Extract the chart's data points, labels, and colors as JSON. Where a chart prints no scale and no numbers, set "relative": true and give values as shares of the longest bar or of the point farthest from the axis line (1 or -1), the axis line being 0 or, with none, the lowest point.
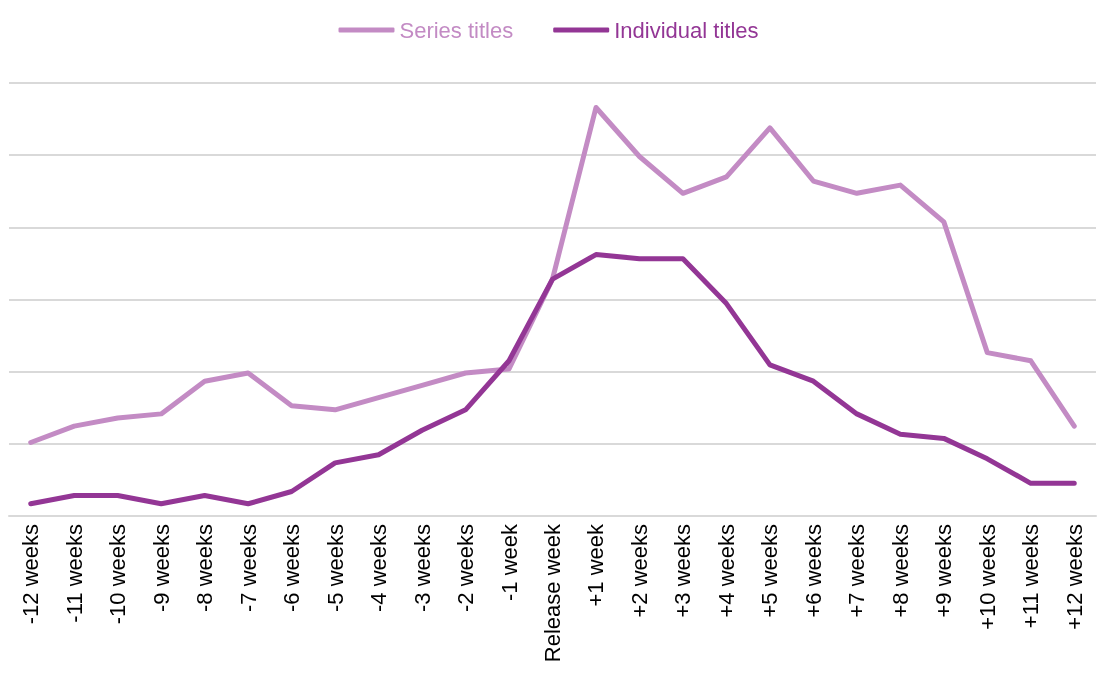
{
  "chart_data": {
    "type": "line",
    "relative": true,
    "categories": [
      "-12 weeks",
      "-11 weeks",
      "-10 weeks",
      "-9 weeks",
      "-8 weeks",
      "-7 weeks",
      "-6 weeks",
      "-5 weeks",
      "-4 weeks",
      "-3 weeks",
      "-2 weeks",
      "-1 week",
      "Release week",
      "+1 week",
      "+2 weeks",
      "+3 weeks",
      "+4 weeks",
      "+5 weeks",
      "+6 weeks",
      "+7 weeks",
      "+8 weeks",
      "+9 weeks",
      "+10 weeks",
      "+11 weeks",
      "+12 weeks"
    ],
    "series": [
      {
        "name": "Series titles",
        "color": "#c38bc4",
        "values": [
          0.18,
          0.22,
          0.24,
          0.25,
          0.33,
          0.35,
          0.27,
          0.26,
          0.29,
          0.32,
          0.35,
          0.36,
          0.58,
          1,
          0.88,
          0.79,
          0.83,
          0.95,
          0.82,
          0.79,
          0.81,
          0.72,
          0.4,
          0.38,
          0.22
        ]
      },
      {
        "name": "Individual titles",
        "color": "#933695",
        "values": [
          0.03,
          0.05,
          0.05,
          0.03,
          0.05,
          0.03,
          0.06,
          0.13,
          0.15,
          0.21,
          0.26,
          0.38,
          0.58,
          0.64,
          0.63,
          0.63,
          0.52,
          0.37,
          0.33,
          0.25,
          0.2,
          0.19,
          0.14,
          0.08,
          0.08
        ]
      }
    ],
    "grid": "y",
    "legend": "top",
    "marker": "none",
    "line_style": "solid"
  }
}
